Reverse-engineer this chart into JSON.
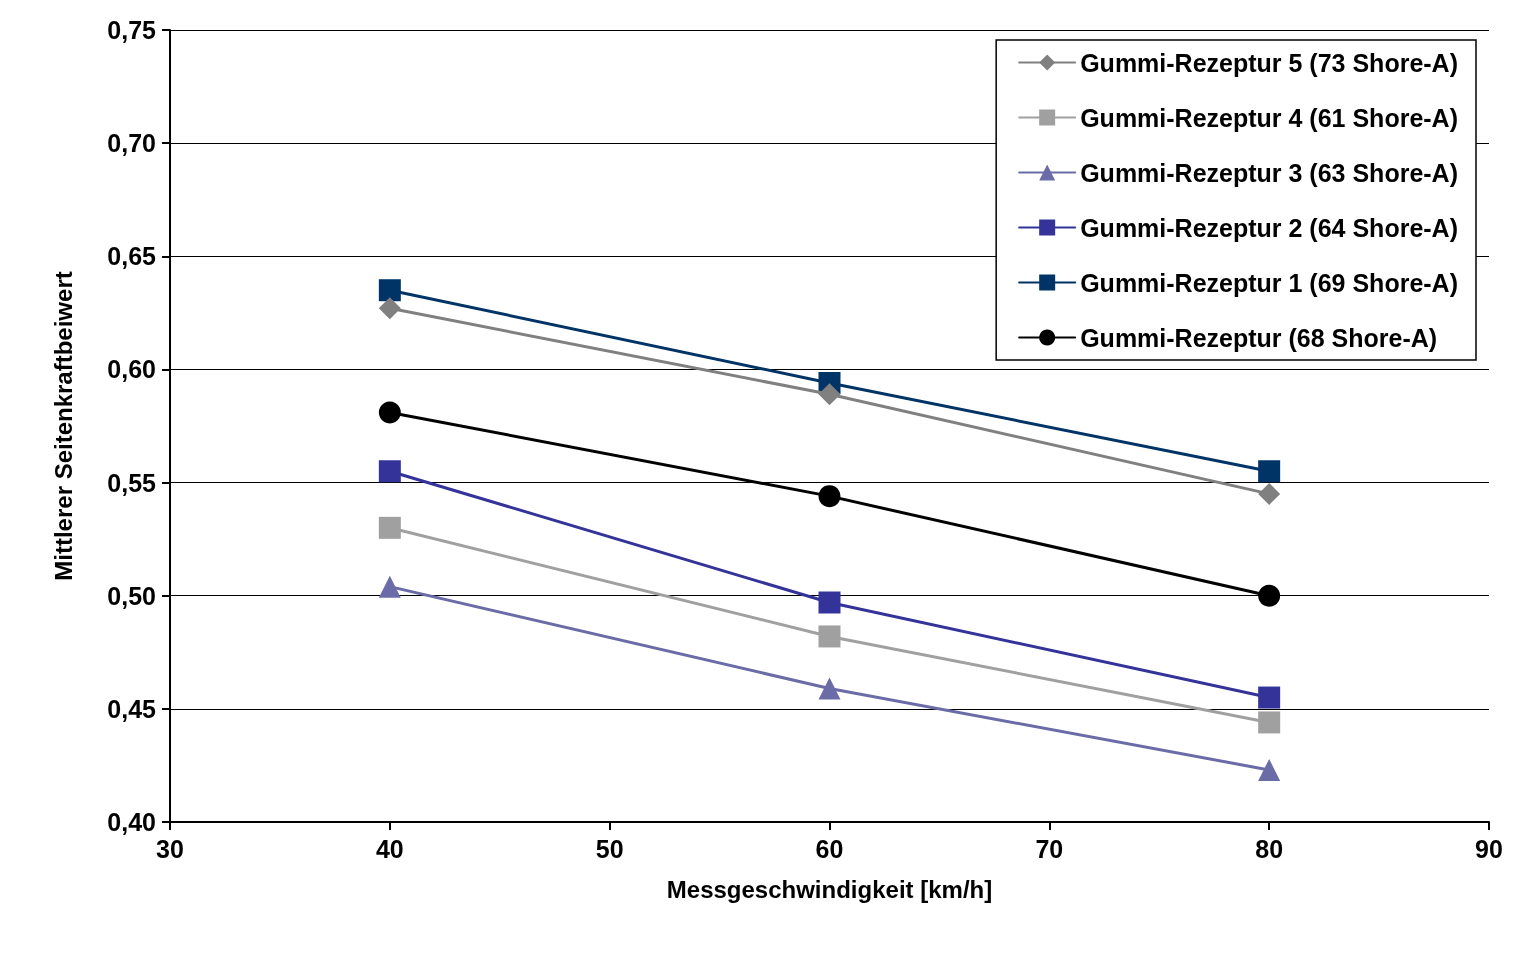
{
  "chart_data": {
    "type": "line",
    "xlabel": "Messgeschwindigkeit [km/h]",
    "ylabel": "Mittlerer Seitenkraftbeiwert",
    "x": [
      40,
      60,
      80
    ],
    "xlim": [
      30,
      90
    ],
    "xticks": [
      30,
      40,
      50,
      60,
      70,
      80,
      90
    ],
    "ylim": [
      0.4,
      0.75
    ],
    "yticks": [
      {
        "value": 0.4,
        "label": "0,40"
      },
      {
        "value": 0.45,
        "label": "0,45"
      },
      {
        "value": 0.5,
        "label": "0,50"
      },
      {
        "value": 0.55,
        "label": "0,55"
      },
      {
        "value": 0.6,
        "label": "0,60"
      },
      {
        "value": 0.65,
        "label": "0,65"
      },
      {
        "value": 0.7,
        "label": "0,70"
      },
      {
        "value": 0.75,
        "label": "0,75"
      }
    ],
    "grid": "y",
    "legend": "top right",
    "line_style": "solid",
    "series": [
      {
        "name": "Gummi-Rezeptur 5 (73 Shore-A)",
        "color": "#808080",
        "marker": "diamond",
        "values": [
          0.627,
          0.589,
          0.545
        ]
      },
      {
        "name": "Gummi-Rezeptur 4 (61 Shore-A)",
        "color": "#a0a0a0",
        "marker": "square",
        "values": [
          0.53,
          0.482,
          0.444
        ]
      },
      {
        "name": "Gummi-Rezeptur 3 (63 Shore-A)",
        "color": "#6b6ba8",
        "marker": "triangle",
        "values": [
          0.504,
          0.459,
          0.423
        ]
      },
      {
        "name": "Gummi-Rezeptur 2 (64 Shore-A)",
        "color": "#333399",
        "marker": "square",
        "values": [
          0.555,
          0.497,
          0.455
        ]
      },
      {
        "name": "Gummi-Rezeptur 1 (69 Shore-A)",
        "color": "#003366",
        "marker": "square",
        "values": [
          0.635,
          0.594,
          0.555
        ]
      },
      {
        "name": "Gummi-Rezeptur (68 Shore-A)",
        "color": "#000000",
        "marker": "circle",
        "values": [
          0.581,
          0.544,
          0.5
        ]
      }
    ]
  }
}
